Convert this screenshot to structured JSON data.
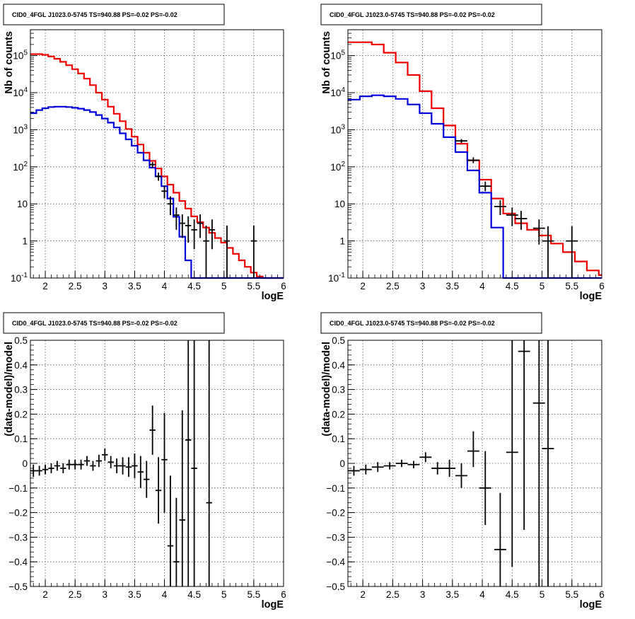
{
  "colors": {
    "data": "#000000",
    "total_model": "#ee0000",
    "source_model": "#0000dd",
    "grid": "#555555"
  },
  "chart_data": [
    {
      "type": "line",
      "title": "CID0_4FGL J1023.0-5745 TS=940.88 PS=-0.02 PS=-0.02",
      "xlabel": "logE",
      "ylabel": "Nb of counts",
      "xlim": [
        1.75,
        6.0
      ],
      "ylim": [
        0.1,
        500000
      ],
      "log_y": true,
      "grid": true,
      "x_ticks": [
        "2",
        "2.5",
        "3",
        "3.5",
        "4",
        "4.5",
        "5",
        "5.5",
        "6"
      ],
      "y_ticks": [
        "10^{-1}",
        "1",
        "10",
        "10^{2}",
        "10^{3}",
        "10^{4}",
        "10^{5}"
      ],
      "bin_edges": [
        1.75,
        1.85,
        1.95,
        2.05,
        2.15,
        2.25,
        2.35,
        2.45,
        2.55,
        2.65,
        2.75,
        2.85,
        2.95,
        3.05,
        3.15,
        3.25,
        3.35,
        3.45,
        3.55,
        3.65,
        3.75,
        3.85,
        3.95,
        4.05,
        4.15,
        4.25,
        4.35,
        4.45,
        4.55,
        4.65,
        4.75,
        4.85,
        4.95,
        5.05,
        5.15,
        5.25,
        5.35,
        5.45,
        5.55,
        5.65,
        5.75,
        5.85,
        5.95,
        6.0
      ],
      "series": [
        {
          "kind": "total_model",
          "values": [
            110000,
            110000,
            105000,
            95000,
            82000,
            68000,
            55000,
            43000,
            33000,
            24000,
            16000,
            10000,
            6500,
            4200,
            2700,
            1700,
            1050,
            650,
            400,
            240,
            145,
            90,
            55,
            33,
            20,
            12,
            7.5,
            4.6,
            3.2,
            2.3,
            1.65,
            1.2,
            0.9,
            0.65,
            0.45,
            0.3,
            0.2,
            0.14,
            0.11,
            0.1,
            0.1,
            0.1,
            0.1
          ]
        },
        {
          "kind": "source_model",
          "values": [
            2800,
            3400,
            3800,
            4100,
            4200,
            4200,
            4100,
            3900,
            3700,
            3400,
            3000,
            2500,
            2000,
            1550,
            1150,
            800,
            550,
            370,
            240,
            150,
            95,
            55,
            30,
            14,
            4.5,
            1.3,
            0.3,
            0.1,
            0.1,
            0.1,
            0.1,
            0.1,
            0.1,
            0.1,
            0.1,
            0.1,
            0.1,
            0.1,
            0.1,
            0.1,
            0.1,
            0.1,
            0.1
          ]
        }
      ],
      "data_points": [
        {
          "x": 3.8,
          "y": 115,
          "dx": 0.05,
          "lo": 95,
          "hi": 135
        },
        {
          "x": 3.9,
          "y": 55,
          "dx": 0.05,
          "lo": 42,
          "hi": 70
        },
        {
          "x": 4.0,
          "y": 22,
          "dx": 0.05,
          "lo": 14,
          "hi": 31
        },
        {
          "x": 4.1,
          "y": 10,
          "dx": 0.05,
          "lo": 5,
          "hi": 16
        },
        {
          "x": 4.2,
          "y": 5,
          "dx": 0.05,
          "lo": 2,
          "hi": 8
        },
        {
          "x": 4.3,
          "y": 3,
          "dx": 0.05,
          "lo": 1.2,
          "hi": 5.2
        },
        {
          "x": 4.4,
          "y": 2.6,
          "dx": 0.05,
          "lo": 0.9,
          "hi": 4.6
        },
        {
          "x": 4.5,
          "y": 2,
          "dx": 0.05,
          "lo": 0.6,
          "hi": 3.8
        },
        {
          "x": 4.6,
          "y": 3,
          "dx": 0.05,
          "lo": 1.2,
          "hi": 5.2
        },
        {
          "x": 4.7,
          "y": 1,
          "dx": 0.05,
          "lo": 0.1,
          "hi": 2.6
        },
        {
          "x": 4.8,
          "y": 2,
          "dx": 0.05,
          "lo": 0.6,
          "hi": 3.8
        },
        {
          "x": 5.05,
          "y": 1,
          "dx": 0.05,
          "lo": 0.1,
          "hi": 2.6
        },
        {
          "x": 5.5,
          "y": 1,
          "dx": 0.05,
          "lo": 0.1,
          "hi": 2.6
        }
      ]
    },
    {
      "type": "line",
      "title": "CID0_4FGL J1023.0-5745 TS=940.88 PS=-0.02 PS=-0.02",
      "xlabel": "logE",
      "ylabel": "Nb of counts",
      "xlim": [
        1.75,
        6.0
      ],
      "ylim": [
        0.1,
        500000
      ],
      "log_y": true,
      "grid": true,
      "x_ticks": [
        "2",
        "2.5",
        "3",
        "3.5",
        "4",
        "4.5",
        "5",
        "5.5",
        "6"
      ],
      "y_ticks": [
        "10^{-1}",
        "1",
        "10",
        "10^{2}",
        "10^{3}",
        "10^{4}",
        "10^{5}"
      ],
      "bin_edges": [
        1.75,
        1.95,
        2.15,
        2.35,
        2.55,
        2.75,
        2.95,
        3.15,
        3.35,
        3.55,
        3.75,
        3.95,
        4.15,
        4.35,
        4.55,
        4.75,
        4.95,
        5.15,
        5.35,
        5.55,
        5.75,
        5.95,
        6.0
      ],
      "series": [
        {
          "kind": "total_model",
          "values": [
            230000,
            230000,
            200000,
            120000,
            65000,
            30000,
            11000,
            3800,
            1300,
            420,
            150,
            45,
            14,
            5.5,
            3,
            2,
            1.4,
            0.85,
            0.5,
            0.28,
            0.16,
            0.12
          ]
        },
        {
          "kind": "source_model",
          "values": [
            6500,
            8000,
            8500,
            8000,
            6800,
            4800,
            2800,
            1450,
            630,
            250,
            80,
            20,
            2.3,
            0.1,
            0.1,
            0.1,
            0.1,
            0.1,
            0.1,
            0.1,
            0.1,
            0.1
          ]
        }
      ],
      "data_points": [
        {
          "x": 3.65,
          "y": 500,
          "dx": 0.1,
          "lo": 440,
          "hi": 560
        },
        {
          "x": 3.85,
          "y": 150,
          "dx": 0.1,
          "lo": 125,
          "hi": 180
        },
        {
          "x": 4.05,
          "y": 30,
          "dx": 0.1,
          "lo": 22,
          "hi": 40
        },
        {
          "x": 4.3,
          "y": 8.5,
          "dx": 0.1,
          "lo": 5,
          "hi": 12.5
        },
        {
          "x": 4.5,
          "y": 5,
          "dx": 0.1,
          "lo": 2.5,
          "hi": 8
        },
        {
          "x": 4.65,
          "y": 4,
          "dx": 0.1,
          "lo": 2,
          "hi": 6.5
        },
        {
          "x": 4.95,
          "y": 2.2,
          "dx": 0.1,
          "lo": 0.8,
          "hi": 3.8
        },
        {
          "x": 5.1,
          "y": 1,
          "dx": 0.1,
          "lo": 0.1,
          "hi": 2.5
        },
        {
          "x": 5.5,
          "y": 1,
          "dx": 0.1,
          "lo": 0.1,
          "hi": 2.5
        }
      ]
    },
    {
      "type": "scatter",
      "title": "CID0_4FGL J1023.0-5745 TS=940.88 PS=-0.02 PS=-0.02",
      "xlabel": "logE",
      "ylabel": "(data-model)/model",
      "xlim": [
        1.75,
        6.0
      ],
      "ylim": [
        -0.5,
        0.5
      ],
      "grid": true,
      "x_ticks": [
        "2",
        "2.5",
        "3",
        "3.5",
        "4",
        "4.5",
        "5",
        "5.5",
        "6"
      ],
      "y_ticks": [
        "-0.5",
        "-0.4",
        "-0.3",
        "-0.2",
        "-0.1",
        "0",
        "0.1",
        "0.2",
        "0.3",
        "0.4",
        "0.5"
      ],
      "points": [
        {
          "x": 1.8,
          "y": -0.03,
          "dx": 0.05,
          "lo": -0.055,
          "hi": -0.005
        },
        {
          "x": 1.9,
          "y": -0.03,
          "dx": 0.05,
          "lo": -0.05,
          "hi": -0.01
        },
        {
          "x": 2.0,
          "y": -0.025,
          "dx": 0.05,
          "lo": -0.045,
          "hi": -0.005
        },
        {
          "x": 2.1,
          "y": -0.02,
          "dx": 0.05,
          "lo": -0.04,
          "hi": 0.0
        },
        {
          "x": 2.2,
          "y": -0.01,
          "dx": 0.05,
          "lo": -0.03,
          "hi": 0.01
        },
        {
          "x": 2.3,
          "y": -0.02,
          "dx": 0.05,
          "lo": -0.04,
          "hi": 0.0
        },
        {
          "x": 2.4,
          "y": -0.005,
          "dx": 0.05,
          "lo": -0.025,
          "hi": 0.015
        },
        {
          "x": 2.5,
          "y": -0.005,
          "dx": 0.05,
          "lo": -0.025,
          "hi": 0.015
        },
        {
          "x": 2.6,
          "y": -0.005,
          "dx": 0.05,
          "lo": -0.025,
          "hi": 0.015
        },
        {
          "x": 2.7,
          "y": 0.01,
          "dx": 0.05,
          "lo": -0.01,
          "hi": 0.03
        },
        {
          "x": 2.8,
          "y": -0.01,
          "dx": 0.05,
          "lo": -0.03,
          "hi": 0.01
        },
        {
          "x": 2.9,
          "y": 0.01,
          "dx": 0.05,
          "lo": -0.015,
          "hi": 0.035
        },
        {
          "x": 3.0,
          "y": 0.035,
          "dx": 0.05,
          "lo": 0.01,
          "hi": 0.06
        },
        {
          "x": 3.1,
          "y": 0.005,
          "dx": 0.05,
          "lo": -0.02,
          "hi": 0.03
        },
        {
          "x": 3.2,
          "y": -0.01,
          "dx": 0.05,
          "lo": -0.04,
          "hi": 0.02
        },
        {
          "x": 3.3,
          "y": -0.01,
          "dx": 0.05,
          "lo": -0.045,
          "hi": 0.025
        },
        {
          "x": 3.4,
          "y": -0.015,
          "dx": 0.05,
          "lo": -0.055,
          "hi": 0.025
        },
        {
          "x": 3.5,
          "y": -0.01,
          "dx": 0.05,
          "lo": -0.06,
          "hi": 0.04
        },
        {
          "x": 3.6,
          "y": -0.035,
          "dx": 0.05,
          "lo": -0.1,
          "hi": 0.03
        },
        {
          "x": 3.7,
          "y": -0.065,
          "dx": 0.05,
          "lo": -0.14,
          "hi": 0.01
        },
        {
          "x": 3.8,
          "y": 0.135,
          "dx": 0.05,
          "lo": 0.035,
          "hi": 0.235
        },
        {
          "x": 3.9,
          "y": -0.11,
          "dx": 0.05,
          "lo": -0.245,
          "hi": 0.025
        },
        {
          "x": 4.0,
          "y": 0.015,
          "dx": 0.05,
          "lo": -0.2,
          "hi": 0.205
        },
        {
          "x": 4.1,
          "y": -0.335,
          "dx": 0.05,
          "lo": -0.5,
          "hi": -0.05
        },
        {
          "x": 4.2,
          "y": -0.4,
          "dx": 0.05,
          "lo": -0.5,
          "hi": -0.14
        },
        {
          "x": 4.3,
          "y": -0.23,
          "dx": 0.05,
          "lo": -0.5,
          "hi": 0.215
        },
        {
          "x": 4.4,
          "y": 0.095,
          "dx": 0.05,
          "lo": -0.5,
          "hi": 0.5
        },
        {
          "x": 4.5,
          "y": -0.02,
          "dx": 0.05,
          "lo": -0.5,
          "hi": 0.5
        },
        {
          "x": 4.75,
          "y": -0.16,
          "dx": 0.05,
          "lo": -0.5,
          "hi": 0.5
        }
      ]
    },
    {
      "type": "scatter",
      "title": "CID0_4FGL J1023.0-5745 TS=940.88 PS=-0.02 PS=-0.02",
      "xlabel": "logE",
      "ylabel": "(data-model)/model",
      "xlim": [
        1.75,
        6.0
      ],
      "ylim": [
        -0.5,
        0.5
      ],
      "grid": true,
      "x_ticks": [
        "2",
        "2.5",
        "3",
        "3.5",
        "4",
        "4.5",
        "5",
        "5.5",
        "6"
      ],
      "y_ticks": [
        "-0.5",
        "-0.4",
        "-0.3",
        "-0.2",
        "-0.1",
        "0",
        "0.1",
        "0.2",
        "0.3",
        "0.4",
        "0.5"
      ],
      "points": [
        {
          "x": 1.85,
          "y": -0.03,
          "dx": 0.1,
          "lo": -0.05,
          "hi": -0.01
        },
        {
          "x": 2.05,
          "y": -0.025,
          "dx": 0.1,
          "lo": -0.045,
          "hi": -0.005
        },
        {
          "x": 2.25,
          "y": -0.015,
          "dx": 0.1,
          "lo": -0.035,
          "hi": 0.005
        },
        {
          "x": 2.45,
          "y": -0.01,
          "dx": 0.1,
          "lo": -0.025,
          "hi": 0.005
        },
        {
          "x": 2.65,
          "y": 0.0,
          "dx": 0.1,
          "lo": -0.015,
          "hi": 0.015
        },
        {
          "x": 2.85,
          "y": -0.005,
          "dx": 0.1,
          "lo": -0.02,
          "hi": 0.01
        },
        {
          "x": 3.05,
          "y": 0.025,
          "dx": 0.1,
          "lo": 0.005,
          "hi": 0.045
        },
        {
          "x": 3.25,
          "y": -0.02,
          "dx": 0.1,
          "lo": -0.045,
          "hi": 0.005
        },
        {
          "x": 3.45,
          "y": -0.02,
          "dx": 0.1,
          "lo": -0.055,
          "hi": 0.015
        },
        {
          "x": 3.65,
          "y": -0.05,
          "dx": 0.1,
          "lo": -0.1,
          "hi": 0.0
        },
        {
          "x": 3.85,
          "y": 0.05,
          "dx": 0.1,
          "lo": -0.015,
          "hi": 0.13
        },
        {
          "x": 4.05,
          "y": -0.1,
          "dx": 0.1,
          "lo": -0.25,
          "hi": 0.05
        },
        {
          "x": 4.3,
          "y": -0.35,
          "dx": 0.1,
          "lo": -0.5,
          "hi": -0.12
        },
        {
          "x": 4.5,
          "y": 0.045,
          "dx": 0.1,
          "lo": -0.42,
          "hi": 0.5
        },
        {
          "x": 4.7,
          "y": 0.455,
          "dx": 0.1,
          "lo": -0.27,
          "hi": 0.5
        },
        {
          "x": 4.95,
          "y": 0.245,
          "dx": 0.1,
          "lo": -0.5,
          "hi": 0.5
        },
        {
          "x": 5.1,
          "y": 0.06,
          "dx": 0.1,
          "lo": -0.5,
          "hi": 0.5
        }
      ]
    }
  ]
}
